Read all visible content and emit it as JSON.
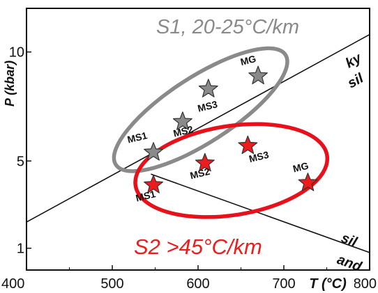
{
  "chart_data": {
    "type": "scatter",
    "ylabel": "P (kbar)",
    "xlabel_inline": "T (°C)",
    "xlim": [
      400,
      800
    ],
    "ylim": [
      0,
      12
    ],
    "x_ticks": [
      "400",
      "500",
      "600",
      "700",
      "800"
    ],
    "y_ticks": [
      {
        "label": "1",
        "value": 1
      },
      {
        "label": "5",
        "value": 5
      },
      {
        "label": "10",
        "value": 10
      }
    ],
    "series": [
      {
        "name": "S1, 20-25°C/km",
        "color": "#8a8a8a",
        "ellipse_color": "#8a8a8a",
        "points": [
          {
            "label": "MS1",
            "x": 548,
            "y": 5.4
          },
          {
            "label": "MS2",
            "x": 582,
            "y": 6.8
          },
          {
            "label": "MS3",
            "x": 612,
            "y": 8.3
          },
          {
            "label": "MG",
            "x": 670,
            "y": 8.9
          }
        ]
      },
      {
        "name": "S2 >45°C/km",
        "color": "#ee1c1c",
        "ellipse_color": "#e8101a",
        "points": [
          {
            "label": "MS1",
            "x": 548,
            "y": 3.9
          },
          {
            "label": "MS2",
            "x": 608,
            "y": 4.9
          },
          {
            "label": "MS3",
            "x": 658,
            "y": 5.7
          },
          {
            "label": "MG",
            "x": 728,
            "y": 4.0
          }
        ]
      }
    ],
    "reaction_lines": [
      {
        "name": "ky-sil",
        "from": [
          400,
          2.2
        ],
        "to": [
          800,
          10.8
        ],
        "labels": [
          "ky",
          "sil"
        ]
      },
      {
        "name": "sil-and",
        "from": [
          545,
          4.4
        ],
        "to": [
          800,
          0.8
        ],
        "labels": [
          "sil",
          "and"
        ]
      }
    ]
  }
}
